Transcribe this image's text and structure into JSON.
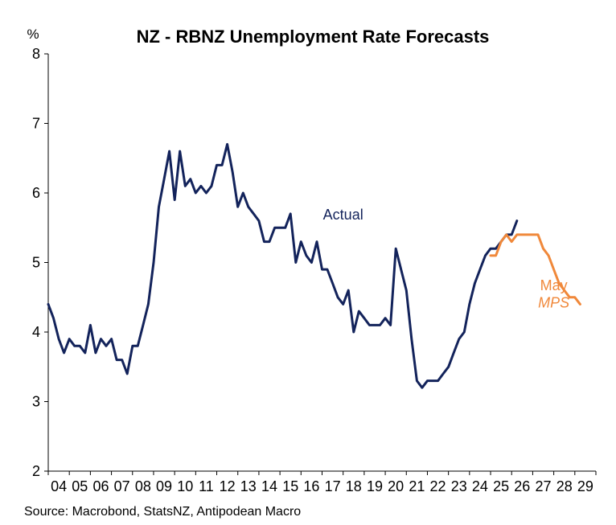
{
  "chart_data": {
    "type": "line",
    "title": "NZ - RBNZ Unemployment Rate Forecasts",
    "ylabel": "%",
    "source": "Source: Macrobond, StatsNZ, Antipodean Macro",
    "ylim": [
      2,
      8
    ],
    "xlim": [
      2004,
      2030
    ],
    "grid": false,
    "y_ticks": [
      2,
      3,
      4,
      5,
      6,
      7,
      8
    ],
    "x_tick_labels": [
      {
        "value": 2004,
        "label": "04"
      },
      {
        "value": 2005,
        "label": "05"
      },
      {
        "value": 2006,
        "label": "06"
      },
      {
        "value": 2007,
        "label": "07"
      },
      {
        "value": 2008,
        "label": "08"
      },
      {
        "value": 2009,
        "label": "09"
      },
      {
        "value": 2010,
        "label": "10"
      },
      {
        "value": 2011,
        "label": "11"
      },
      {
        "value": 2012,
        "label": "12"
      },
      {
        "value": 2013,
        "label": "13"
      },
      {
        "value": 2014,
        "label": "14"
      },
      {
        "value": 2015,
        "label": "15"
      },
      {
        "value": 2016,
        "label": "16"
      },
      {
        "value": 2017,
        "label": "17"
      },
      {
        "value": 2018,
        "label": "18"
      },
      {
        "value": 2019,
        "label": "19"
      },
      {
        "value": 2020,
        "label": "20"
      },
      {
        "value": 2021,
        "label": "21"
      },
      {
        "value": 2022,
        "label": "22"
      },
      {
        "value": 2023,
        "label": "23"
      },
      {
        "value": 2024,
        "label": "24"
      },
      {
        "value": 2025,
        "label": "25"
      },
      {
        "value": 2026,
        "label": "26"
      },
      {
        "value": 2027,
        "label": "27"
      },
      {
        "value": 2028,
        "label": "28"
      },
      {
        "value": 2029,
        "label": "29"
      }
    ],
    "series": [
      {
        "name": "Actual",
        "color": "#13235b",
        "x": [
          2004.0,
          2004.25,
          2004.5,
          2004.75,
          2005.0,
          2005.25,
          2005.5,
          2005.75,
          2006.0,
          2006.25,
          2006.5,
          2006.75,
          2007.0,
          2007.25,
          2007.5,
          2007.75,
          2008.0,
          2008.25,
          2008.5,
          2008.75,
          2009.0,
          2009.25,
          2009.5,
          2009.75,
          2010.0,
          2010.25,
          2010.5,
          2010.75,
          2011.0,
          2011.25,
          2011.5,
          2011.75,
          2012.0,
          2012.25,
          2012.5,
          2012.75,
          2013.0,
          2013.25,
          2013.5,
          2013.75,
          2014.0,
          2014.25,
          2014.5,
          2014.75,
          2015.0,
          2015.25,
          2015.5,
          2015.75,
          2016.0,
          2016.25,
          2016.5,
          2016.75,
          2017.0,
          2017.25,
          2017.5,
          2017.75,
          2018.0,
          2018.25,
          2018.5,
          2018.75,
          2019.0,
          2019.25,
          2019.5,
          2019.75,
          2020.0,
          2020.25,
          2020.5,
          2020.75,
          2021.0,
          2021.25,
          2021.5,
          2021.75,
          2022.0,
          2022.25,
          2022.5,
          2022.75,
          2023.0,
          2023.25,
          2023.5,
          2023.75,
          2024.0,
          2024.25,
          2024.5,
          2024.75,
          2025.0,
          2025.25,
          2025.5,
          2025.75,
          2026.0,
          2026.25
        ],
        "y": [
          4.4,
          4.2,
          3.9,
          3.7,
          3.9,
          3.8,
          3.8,
          3.7,
          4.1,
          3.7,
          3.9,
          3.8,
          3.9,
          3.6,
          3.6,
          3.4,
          3.8,
          3.8,
          4.1,
          4.4,
          5.0,
          5.8,
          6.2,
          6.6,
          5.9,
          6.6,
          6.1,
          6.2,
          6.0,
          6.1,
          6.0,
          6.1,
          6.4,
          6.4,
          6.7,
          6.3,
          5.8,
          6.0,
          5.8,
          5.7,
          5.6,
          5.3,
          5.3,
          5.5,
          5.5,
          5.5,
          5.7,
          5.0,
          5.3,
          5.1,
          5.0,
          5.3,
          4.9,
          4.9,
          4.7,
          4.5,
          4.4,
          4.6,
          4.0,
          4.3,
          4.2,
          4.1,
          4.1,
          4.1,
          4.2,
          4.1,
          5.2,
          4.9,
          4.6,
          3.9,
          3.3,
          3.2,
          3.3,
          3.3,
          3.3,
          3.4,
          3.5,
          3.7,
          3.9,
          4.0,
          4.4,
          4.7,
          4.9,
          5.1,
          5.2,
          5.2,
          5.3,
          5.4,
          5.4,
          5.6
        ]
      },
      {
        "name": "May MPS",
        "color": "#f0883a",
        "x": [
          2025.0,
          2025.25,
          2025.5,
          2025.75,
          2026.0,
          2026.25,
          2026.5,
          2026.75,
          2027.0,
          2027.25,
          2027.5,
          2027.75,
          2028.0,
          2028.25,
          2028.5,
          2028.75,
          2029.0,
          2029.25
        ],
        "y": [
          5.1,
          5.1,
          5.3,
          5.4,
          5.3,
          5.4,
          5.4,
          5.4,
          5.4,
          5.4,
          5.2,
          5.1,
          4.9,
          4.7,
          4.6,
          4.5,
          4.5,
          4.4
        ]
      }
    ],
    "annotations": [
      {
        "text": "Actual",
        "color": "#13235b",
        "x": 2018.0,
        "y": 5.62
      },
      {
        "text": "May",
        "color": "#f0883a",
        "x": 2028.0,
        "y": 4.6
      },
      {
        "text": "MPS",
        "color": "#f0883a",
        "x": 2028.0,
        "y": 4.35,
        "italic": true
      }
    ]
  }
}
